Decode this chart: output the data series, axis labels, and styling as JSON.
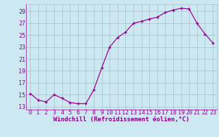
{
  "x": [
    0,
    1,
    2,
    3,
    4,
    5,
    6,
    7,
    8,
    9,
    10,
    11,
    12,
    13,
    14,
    15,
    16,
    17,
    18,
    19,
    20,
    21,
    22,
    23
  ],
  "y": [
    15.2,
    14.1,
    13.8,
    15.0,
    14.4,
    13.7,
    13.5,
    13.5,
    15.8,
    19.5,
    23.0,
    24.6,
    25.5,
    27.0,
    27.3,
    27.7,
    28.0,
    28.8,
    29.2,
    29.5,
    29.4,
    27.0,
    25.2,
    23.7
  ],
  "line_color": "#990099",
  "marker": "+",
  "xlabel": "Windchill (Refroidissement éolien,°C)",
  "ylabel": "",
  "bg_color": "#cce8f0",
  "grid_color": "#aabbcc",
  "tick_color": "#880088",
  "label_color": "#880088",
  "xlim": [
    -0.5,
    23.5
  ],
  "ylim": [
    12.5,
    30.2
  ],
  "yticks": [
    13,
    15,
    17,
    19,
    21,
    23,
    25,
    27,
    29
  ],
  "xticks": [
    0,
    1,
    2,
    3,
    4,
    5,
    6,
    7,
    8,
    9,
    10,
    11,
    12,
    13,
    14,
    15,
    16,
    17,
    18,
    19,
    20,
    21,
    22,
    23
  ],
  "fontsize_label": 6.5,
  "fontsize_tick": 6.0,
  "font_family": "monospace"
}
